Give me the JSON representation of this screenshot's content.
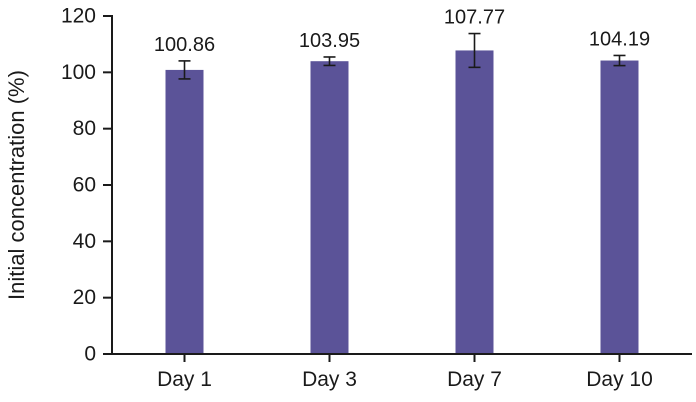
{
  "chart_data": {
    "type": "bar",
    "title": "",
    "xlabel": "",
    "ylabel": "Initial concentration (%)",
    "categories": [
      "Day 1",
      "Day 3",
      "Day 7",
      "Day 10"
    ],
    "values": [
      100.86,
      103.95,
      107.77,
      104.19
    ],
    "error_bars": [
      3.2,
      1.5,
      6.0,
      1.8
    ],
    "data_labels": [
      "100.86",
      "103.95",
      "107.77",
      "104.19"
    ],
    "ylim": [
      0,
      120
    ],
    "yticks": [
      0,
      20,
      40,
      60,
      80,
      100,
      120
    ],
    "ytick_labels": [
      "0",
      "20",
      "40",
      "60",
      "80",
      "100",
      "120"
    ],
    "grid": false,
    "legend": "none",
    "bar_color": "#5b5398",
    "axis_color": "#1a1a1a"
  }
}
